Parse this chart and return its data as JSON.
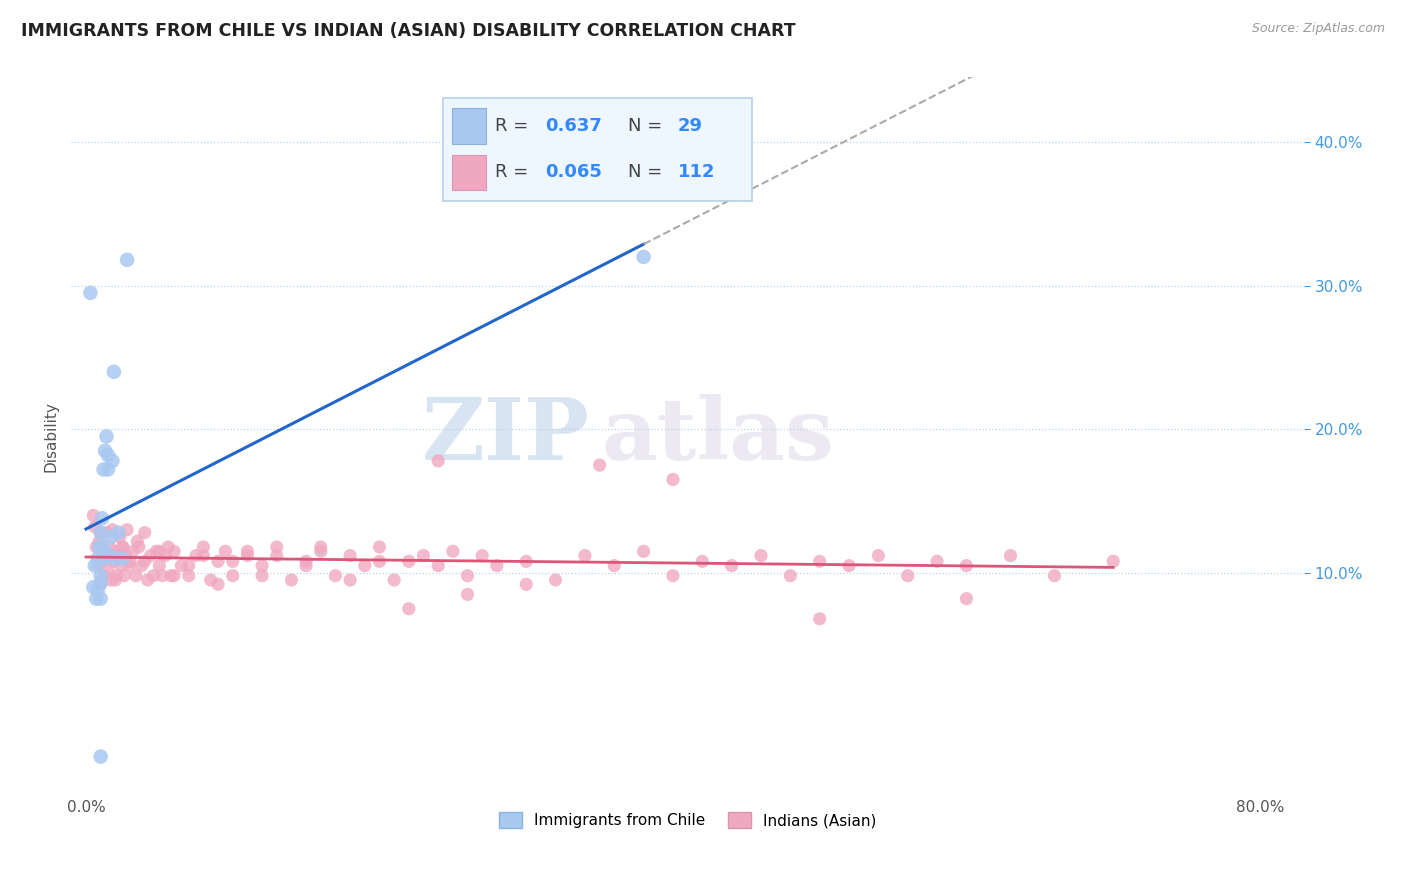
{
  "title": "IMMIGRANTS FROM CHILE VS INDIAN (ASIAN) DISABILITY CORRELATION CHART",
  "source": "Source: ZipAtlas.com",
  "ylabel": "Disability",
  "ylim": [
    -0.055,
    0.445
  ],
  "xlim": [
    -0.01,
    0.83
  ],
  "yticks": [
    0.1,
    0.2,
    0.3,
    0.4
  ],
  "ytick_labels": [
    "10.0%",
    "20.0%",
    "30.0%",
    "40.0%"
  ],
  "xtick_left_label": "0.0%",
  "xtick_right_label": "80.0%",
  "xtick_left_val": 0.0,
  "xtick_right_val": 0.8,
  "chile_R": 0.637,
  "chile_N": 29,
  "indian_R": 0.065,
  "indian_N": 112,
  "chile_color": "#a8c8f0",
  "indian_color": "#f0a8c0",
  "chile_line_color": "#2266cc",
  "indian_line_color": "#dd5577",
  "watermark_zip": "ZIP",
  "watermark_atlas": "atlas",
  "grid_color": "#b8d4ee",
  "legend_bg": "#eef6ff",
  "legend_border": "#b8d0e8",
  "chile_x": [
    0.003,
    0.005,
    0.006,
    0.007,
    0.008,
    0.008,
    0.009,
    0.01,
    0.01,
    0.01,
    0.01,
    0.011,
    0.012,
    0.012,
    0.013,
    0.013,
    0.014,
    0.015,
    0.015,
    0.016,
    0.017,
    0.018,
    0.019,
    0.02,
    0.022,
    0.025,
    0.028,
    0.38,
    0.01
  ],
  "chile_y": [
    0.295,
    0.09,
    0.105,
    0.082,
    0.11,
    0.088,
    0.118,
    0.128,
    0.093,
    0.098,
    0.082,
    0.138,
    0.172,
    0.118,
    0.185,
    0.11,
    0.195,
    0.172,
    0.182,
    0.112,
    0.125,
    0.178,
    0.24,
    0.11,
    0.128,
    0.11,
    0.318,
    0.32,
    -0.028
  ],
  "indian_x": [
    0.005,
    0.006,
    0.007,
    0.008,
    0.009,
    0.01,
    0.01,
    0.011,
    0.012,
    0.013,
    0.014,
    0.015,
    0.016,
    0.017,
    0.018,
    0.019,
    0.02,
    0.021,
    0.022,
    0.023,
    0.024,
    0.025,
    0.026,
    0.027,
    0.028,
    0.03,
    0.032,
    0.034,
    0.036,
    0.038,
    0.04,
    0.042,
    0.044,
    0.046,
    0.048,
    0.05,
    0.052,
    0.054,
    0.056,
    0.058,
    0.06,
    0.065,
    0.07,
    0.075,
    0.08,
    0.085,
    0.09,
    0.095,
    0.1,
    0.11,
    0.12,
    0.13,
    0.14,
    0.15,
    0.16,
    0.17,
    0.18,
    0.19,
    0.2,
    0.21,
    0.22,
    0.23,
    0.24,
    0.25,
    0.26,
    0.27,
    0.28,
    0.3,
    0.32,
    0.34,
    0.36,
    0.38,
    0.4,
    0.42,
    0.44,
    0.46,
    0.48,
    0.5,
    0.52,
    0.54,
    0.56,
    0.58,
    0.6,
    0.63,
    0.66,
    0.7,
    0.01,
    0.015,
    0.02,
    0.025,
    0.03,
    0.035,
    0.04,
    0.05,
    0.06,
    0.07,
    0.08,
    0.09,
    0.1,
    0.11,
    0.12,
    0.13,
    0.15,
    0.16,
    0.18,
    0.2,
    0.22,
    0.24,
    0.26,
    0.3,
    0.35,
    0.4,
    0.5,
    0.6
  ],
  "indian_y": [
    0.14,
    0.132,
    0.118,
    0.105,
    0.122,
    0.108,
    0.092,
    0.115,
    0.098,
    0.112,
    0.128,
    0.102,
    0.118,
    0.095,
    0.13,
    0.108,
    0.115,
    0.098,
    0.112,
    0.125,
    0.105,
    0.118,
    0.098,
    0.112,
    0.13,
    0.108,
    0.115,
    0.098,
    0.118,
    0.105,
    0.128,
    0.095,
    0.112,
    0.098,
    0.115,
    0.105,
    0.098,
    0.112,
    0.118,
    0.098,
    0.115,
    0.105,
    0.098,
    0.112,
    0.118,
    0.095,
    0.108,
    0.115,
    0.098,
    0.112,
    0.105,
    0.118,
    0.095,
    0.108,
    0.115,
    0.098,
    0.112,
    0.105,
    0.118,
    0.095,
    0.108,
    0.112,
    0.105,
    0.115,
    0.098,
    0.112,
    0.105,
    0.108,
    0.095,
    0.112,
    0.105,
    0.115,
    0.098,
    0.108,
    0.105,
    0.112,
    0.098,
    0.108,
    0.105,
    0.112,
    0.098,
    0.108,
    0.105,
    0.112,
    0.098,
    0.108,
    0.128,
    0.112,
    0.095,
    0.118,
    0.105,
    0.122,
    0.108,
    0.115,
    0.098,
    0.105,
    0.112,
    0.092,
    0.108,
    0.115,
    0.098,
    0.112,
    0.105,
    0.118,
    0.095,
    0.108,
    0.075,
    0.178,
    0.085,
    0.092,
    0.175,
    0.165,
    0.068,
    0.082
  ]
}
